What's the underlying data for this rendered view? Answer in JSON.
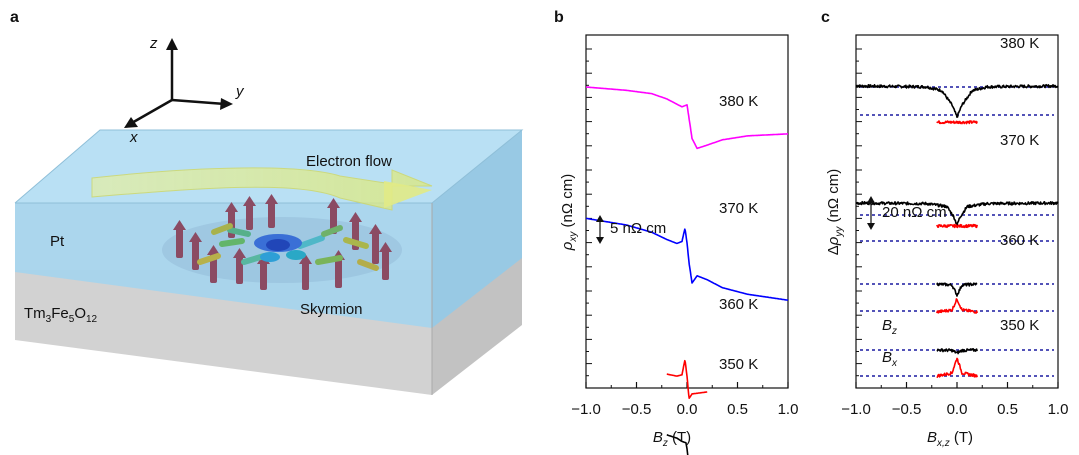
{
  "panel_labels": {
    "a": "a",
    "b": "b",
    "c": "c"
  },
  "schematic": {
    "axis_x": "x",
    "axis_y": "y",
    "axis_z": "z",
    "electron_flow": "Electron flow",
    "pt": "Pt",
    "tmfeo": {
      "a": "Tm",
      "b": "3",
      "c": "Fe",
      "d": "5",
      "e": "O",
      "f": "12"
    },
    "skyrmion": "Skyrmion",
    "colors": {
      "pt_layer": "#a9d6ee",
      "substrate": "#cfcfcf",
      "flow": "#e6ef8a"
    }
  },
  "chart_data": [
    {
      "type": "line",
      "panel": "b",
      "xlabel": {
        "base": "B",
        "sub": "z",
        "unit": " (T)"
      },
      "ylabel": {
        "base": "ρ",
        "sub": "xy",
        "unit": " (nΩ cm)"
      },
      "xlim": [
        -1.0,
        1.0
      ],
      "x_ticks": [
        -1.0,
        -0.5,
        0.0,
        0.5,
        1.0
      ],
      "x_tick_labels": [
        "−1.0",
        "−0.5",
        "0.0",
        "0.5",
        "1.0"
      ],
      "scale_bar": "5 nΩ cm",
      "series": [
        {
          "name": "380 K",
          "label": "380 K",
          "color": "#ff00ff",
          "x": [
            -1.0,
            -0.6,
            -0.35,
            -0.2,
            -0.1,
            -0.05,
            0.0,
            0.02,
            0.05,
            0.1,
            0.2,
            0.35,
            0.6,
            1.0
          ],
          "y": [
            10.3,
            9.8,
            9.3,
            8.5,
            7.7,
            7.3,
            7.6,
            5.6,
            2.5,
            1.0,
            1.5,
            2.3,
            2.9,
            3.2
          ]
        },
        {
          "name": "370 K",
          "label": "370 K",
          "color": "#0000ff",
          "x": [
            -1.0,
            -0.6,
            -0.35,
            -0.2,
            -0.1,
            -0.05,
            -0.02,
            0.0,
            0.02,
            0.05,
            0.1,
            0.2,
            0.35,
            0.6,
            1.0
          ],
          "y": [
            -9.6,
            -10.6,
            -11.7,
            -12.8,
            -13.4,
            -13.1,
            -11.1,
            -13.3,
            -16.3,
            -19.4,
            -18.3,
            -18.9,
            -20.1,
            -21.1,
            -22.0
          ]
        },
        {
          "name": "360 K",
          "label": "360 K",
          "color": "#ff0000",
          "x": [
            -0.2,
            -0.1,
            -0.05,
            -0.02,
            0.0,
            0.02,
            0.05,
            0.1,
            0.2
          ],
          "y": [
            -33.2,
            -33.5,
            -33.3,
            -31.0,
            -33.5,
            -36.9,
            -36.2,
            -36.1,
            -35.9
          ]
        },
        {
          "name": "350 K",
          "label": "350 K",
          "color": "#000000",
          "x": [
            -0.2,
            -0.1,
            -0.05,
            -0.01,
            0.0,
            0.01,
            0.05,
            0.1,
            0.2
          ],
          "y": [
            -42.4,
            -42.9,
            -43.4,
            -43.6,
            -44.5,
            -45.9,
            -46.3,
            -46.6,
            -47.0
          ]
        }
      ]
    },
    {
      "type": "line",
      "panel": "c",
      "xlabel": {
        "base": "B",
        "sub": "x,z",
        "unit": " (T)"
      },
      "ylabel": {
        "pre": "Δ",
        "base": "ρ",
        "sub": "yy",
        "unit": " (nΩ cm)"
      },
      "xlim": [
        -1.0,
        1.0
      ],
      "x_ticks": [
        -1.0,
        -0.5,
        0.0,
        0.5,
        1.0
      ],
      "x_tick_labels": [
        "−1.0",
        "−0.5",
        "0.0",
        "0.5",
        "1.0"
      ],
      "scale_bar": "20 nΩ cm",
      "field_labels": {
        "bz": {
          "base": "B",
          "sub": "z"
        },
        "bx": {
          "base": "B",
          "sub": "x"
        }
      },
      "series": [
        {
          "name": "380 K, Bz",
          "label": "380 K",
          "color": "#000000",
          "xrange": [
            -1.0,
            1.0
          ],
          "x": [
            -1.0,
            -0.3,
            -0.15,
            -0.05,
            0.0,
            0.05,
            0.15,
            0.3,
            1.0
          ],
          "y": [
            5.5,
            5.1,
            3.2,
            -4.0,
            -10.0,
            -4.0,
            3.2,
            5.1,
            5.5
          ]
        },
        {
          "name": "380 K, Bx",
          "color": "#ff0000",
          "xrange": [
            -0.2,
            0.2
          ],
          "x": [
            -0.2,
            0.2
          ],
          "y": [
            -12.6,
            -12.6
          ]
        },
        {
          "name": "370 K, Bz",
          "label": "370 K",
          "color": "#000000",
          "xrange": [
            -1.0,
            1.0
          ],
          "x": [
            -1.0,
            -0.3,
            -0.1,
            -0.03,
            0.0,
            0.03,
            0.1,
            0.3,
            1.0
          ],
          "y": [
            -53.0,
            -53.3,
            -54.8,
            -60.0,
            -64.0,
            -60.0,
            -54.8,
            -53.3,
            -53.0
          ]
        },
        {
          "name": "370 K, Bx",
          "color": "#ff0000",
          "xrange": [
            -0.2,
            0.2
          ],
          "x": [
            -0.2,
            0.2
          ],
          "y": [
            -64.5,
            -64.5
          ]
        },
        {
          "name": "360 K, Bz",
          "label": "360 K",
          "color": "#000000",
          "xrange": [
            -0.2,
            0.2
          ],
          "x": [
            -0.2,
            -0.05,
            0.0,
            0.05,
            0.2
          ],
          "y": [
            -93.5,
            -94.0,
            -99.0,
            -94.0,
            -93.5
          ]
        },
        {
          "name": "360 K, Bx",
          "color": "#ff0000",
          "xrange": [
            -0.2,
            0.2
          ],
          "x": [
            -0.2,
            -0.05,
            0.0,
            0.05,
            0.2
          ],
          "y": [
            -107.5,
            -106.5,
            -101.0,
            -106.5,
            -107.5
          ]
        },
        {
          "name": "350 K, Bz",
          "label": "350 K",
          "color": "#000000",
          "xrange": [
            -0.2,
            0.2
          ],
          "x": [
            -0.2,
            -0.05,
            0.0,
            0.05,
            0.2
          ],
          "y": [
            -126.5,
            -126.7,
            -128.0,
            -126.7,
            -126.5
          ]
        },
        {
          "name": "350 K, Bx",
          "color": "#ff0000",
          "xrange": [
            -0.2,
            0.2
          ],
          "x": [
            -0.2,
            -0.05,
            0.0,
            0.05,
            0.2
          ],
          "y": [
            -139.5,
            -138.0,
            -130.5,
            -138.0,
            -139.5
          ]
        }
      ],
      "reference_levels": [
        5.0,
        -9.0,
        -59.0,
        -72.0,
        -93.5,
        -107.0,
        -126.5,
        -139.5
      ]
    }
  ]
}
